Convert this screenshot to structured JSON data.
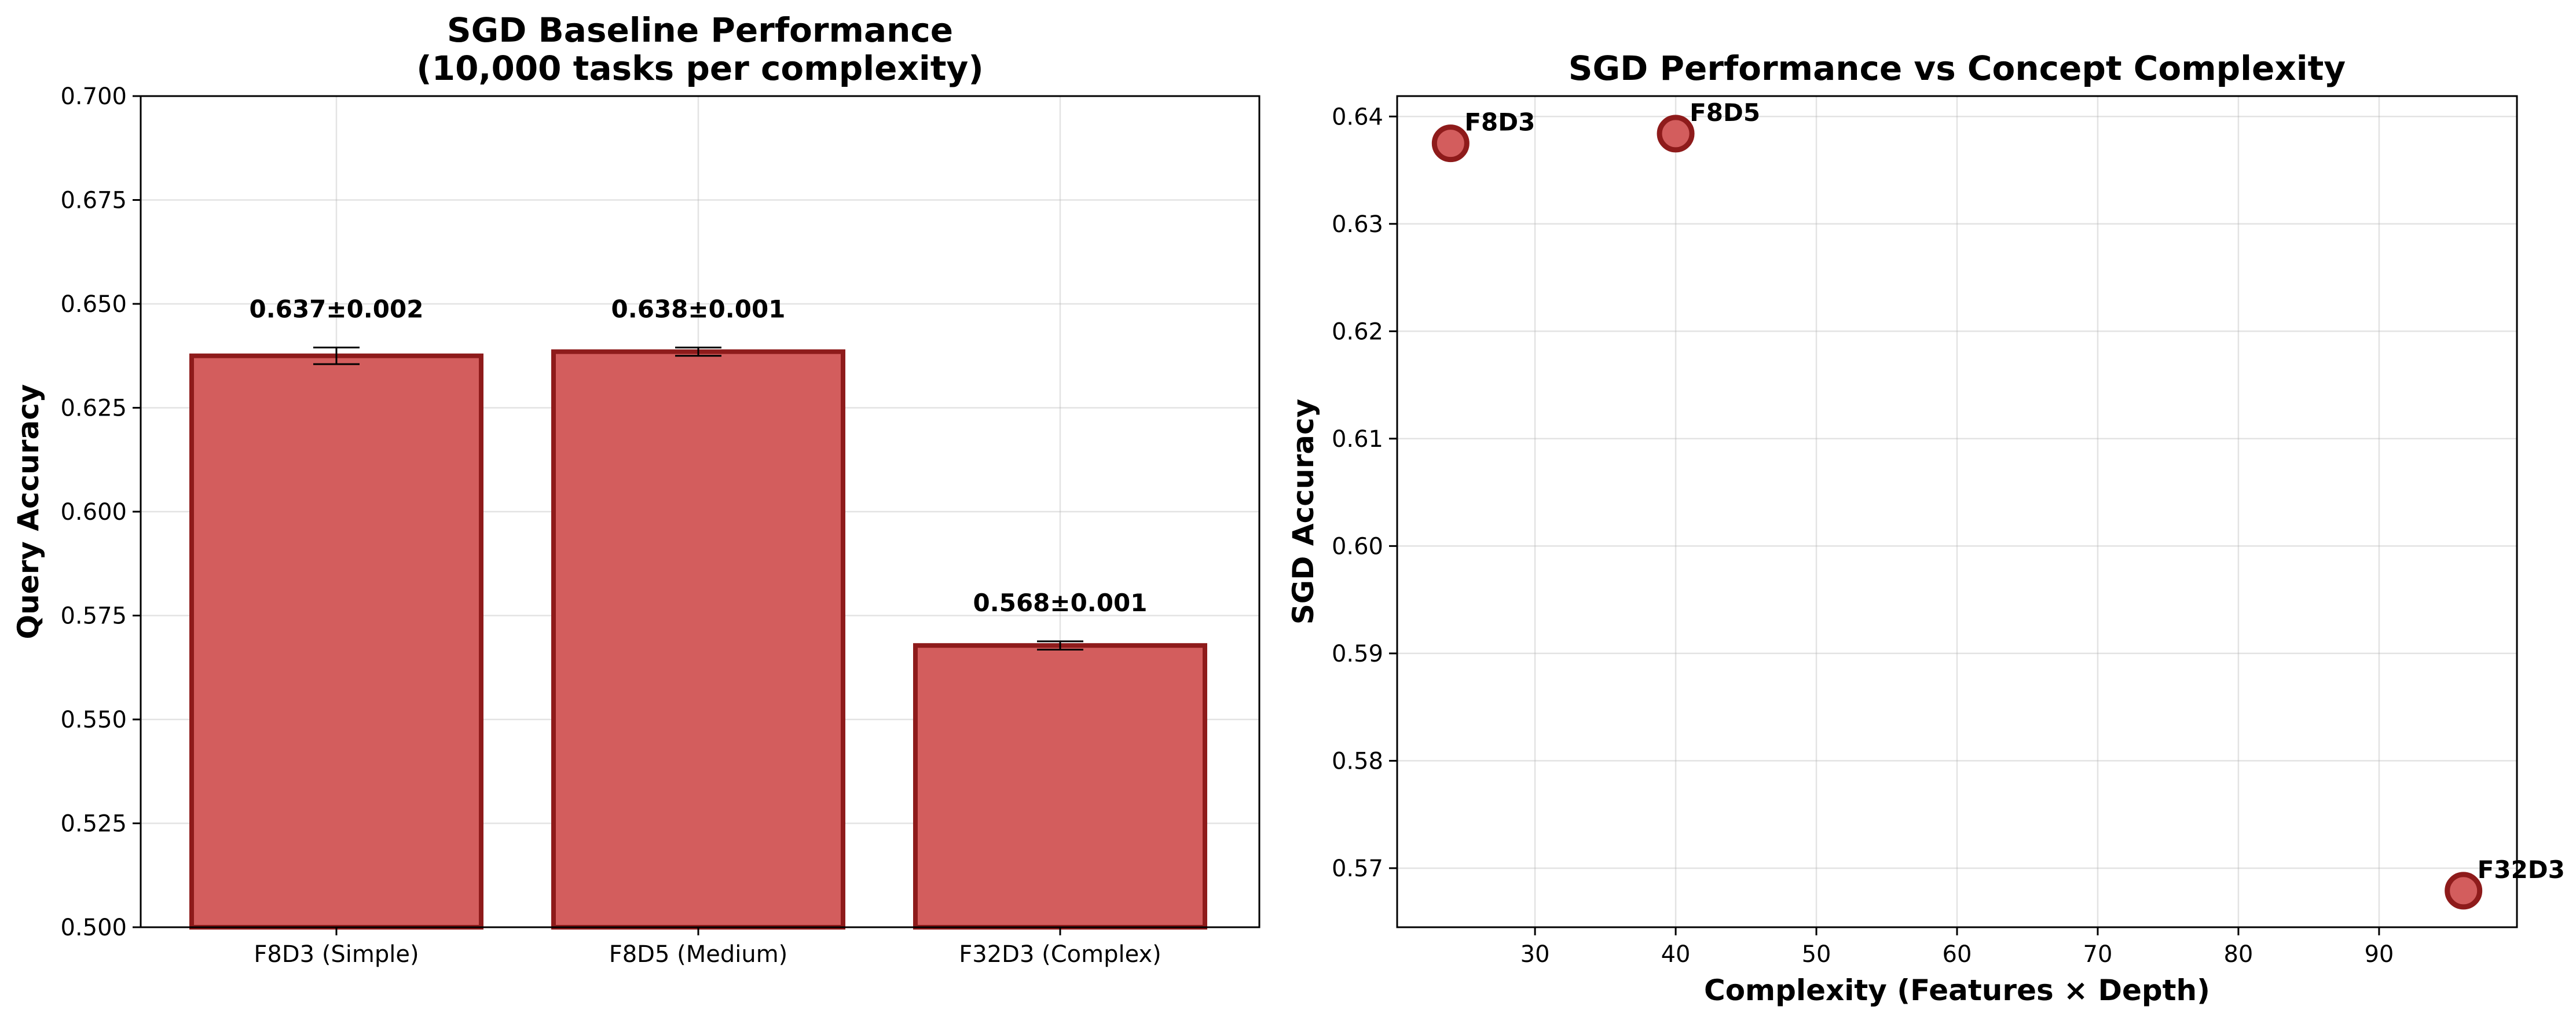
{
  "colors": {
    "bar_fill": "#d35d5d",
    "bar_edge": "#8e1b1b",
    "point_fill": "#d35d5d",
    "point_edge": "#8e1b1b",
    "error_bar": "#000000"
  },
  "chart_data": [
    {
      "type": "bar",
      "title_line1": "SGD Baseline Performance",
      "title_line2": "(10,000 tasks per complexity)",
      "xlabel": "",
      "ylabel": "Query Accuracy",
      "categories": [
        "F8D3 (Simple)",
        "F8D5 (Medium)",
        "F32D3 (Complex)"
      ],
      "values": [
        0.6375,
        0.6385,
        0.5678
      ],
      "errors": [
        0.002,
        0.001,
        0.001
      ],
      "value_labels": [
        "0.637±0.002",
        "0.638±0.001",
        "0.568±0.001"
      ],
      "ylim": [
        0.5,
        0.7
      ],
      "yticks": [
        0.5,
        0.525,
        0.55,
        0.575,
        0.6,
        0.625,
        0.65,
        0.675,
        0.7
      ],
      "ytick_labels": [
        "0.500",
        "0.525",
        "0.550",
        "0.575",
        "0.600",
        "0.625",
        "0.650",
        "0.675",
        "0.700"
      ],
      "grid": true
    },
    {
      "type": "scatter",
      "title": "SGD Performance vs Concept Complexity",
      "xlabel": "Complexity (Features × Depth)",
      "ylabel": "SGD Accuracy",
      "points": [
        {
          "label": "F8D3",
          "x": 24,
          "y": 0.6375
        },
        {
          "label": "F8D5",
          "x": 40,
          "y": 0.6384
        },
        {
          "label": "F32D3",
          "x": 96,
          "y": 0.5679
        }
      ],
      "xlim": [
        20.2,
        99.8
      ],
      "ylim": [
        0.5645,
        0.6419
      ],
      "xticks": [
        30,
        40,
        50,
        60,
        70,
        80,
        90
      ],
      "xtick_labels": [
        "30",
        "40",
        "50",
        "60",
        "70",
        "80",
        "90"
      ],
      "yticks": [
        0.57,
        0.58,
        0.59,
        0.6,
        0.61,
        0.62,
        0.63,
        0.64
      ],
      "ytick_labels": [
        "0.57",
        "0.58",
        "0.59",
        "0.60",
        "0.61",
        "0.62",
        "0.63",
        "0.64"
      ],
      "grid": true
    }
  ]
}
